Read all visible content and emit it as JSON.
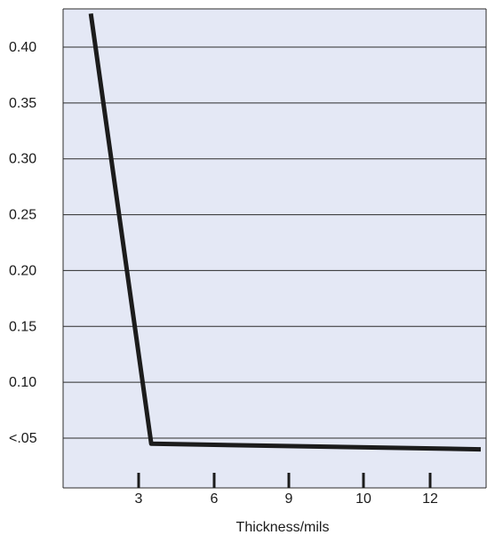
{
  "chart_data": {
    "type": "line",
    "title": "",
    "xlabel": "Thickness/mils",
    "ylabel": "",
    "grid": true,
    "legend": "none",
    "colors": {
      "plot_background": "#e4e8f5",
      "line": "#1c1c1c",
      "grid": "#2b2b2b",
      "frame": "#2b2b2b"
    },
    "y_ticks": [
      {
        "label": "<.05",
        "value": 0.05
      },
      {
        "label": "0.10",
        "value": 0.1
      },
      {
        "label": "0.15",
        "value": 0.15
      },
      {
        "label": "0.20",
        "value": 0.2
      },
      {
        "label": "0.25",
        "value": 0.25
      },
      {
        "label": "0.30",
        "value": 0.3
      },
      {
        "label": "0.35",
        "value": 0.35
      },
      {
        "label": "0.40",
        "value": 0.4
      }
    ],
    "x_ticks": [
      {
        "label": "3",
        "value": 3
      },
      {
        "label": "6",
        "value": 6
      },
      {
        "label": "9",
        "value": 9
      },
      {
        "label": "10",
        "value": 10
      },
      {
        "label": "12",
        "value": 12
      }
    ],
    "series": [
      {
        "points": [
          {
            "x": 1.1,
            "y": 0.43
          },
          {
            "x": 3.5,
            "y": 0.045
          },
          {
            "x": 13.5,
            "y": 0.04
          }
        ]
      }
    ]
  }
}
